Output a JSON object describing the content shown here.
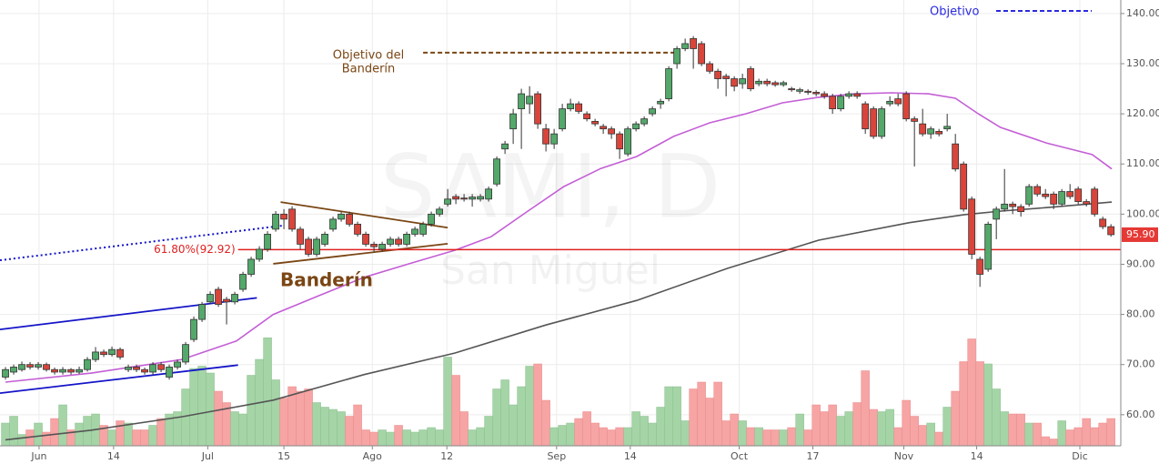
{
  "chart_data": {
    "type": "candlestick",
    "watermark": "SAMI, D",
    "watermark_sub": "San Miguel",
    "xlim": [
      -0.67,
      136.2
    ],
    "xticks": [
      {
        "value": 4.1,
        "label": "Jun"
      },
      {
        "value": 13.2,
        "label": "14"
      },
      {
        "value": 24.7,
        "label": "Jul"
      },
      {
        "value": 34,
        "label": "15"
      },
      {
        "value": 44.8,
        "label": "Ago"
      },
      {
        "value": 53.9,
        "label": "12"
      },
      {
        "value": 67.3,
        "label": "Sep"
      },
      {
        "value": 76.3,
        "label": "14"
      },
      {
        "value": 89.6,
        "label": "Oct"
      },
      {
        "value": 98.6,
        "label": "17"
      },
      {
        "value": 109.7,
        "label": "Nov"
      },
      {
        "value": 118.6,
        "label": "14"
      },
      {
        "value": 131.2,
        "label": "Dic"
      }
    ],
    "ylim": [
      53.8,
      142.7
    ],
    "yticks": [
      {
        "value": 60,
        "label": "60.00"
      },
      {
        "value": 70,
        "label": "70.00"
      },
      {
        "value": 80,
        "label": "80.00"
      },
      {
        "value": 90,
        "label": "90.00"
      },
      {
        "value": 100,
        "label": "100.00"
      },
      {
        "value": 110,
        "label": "110.00"
      },
      {
        "value": 120,
        "label": "120.00"
      },
      {
        "value": 130,
        "label": "130.00"
      },
      {
        "value": 140,
        "label": "140.00"
      }
    ],
    "grid": true,
    "up_color": "#53a86a",
    "down_color": "#d9453b",
    "candles": {
      "open": [
        67.5,
        68.5,
        69,
        70,
        69.5,
        70,
        69,
        68.5,
        69,
        68.5,
        69,
        71,
        72.5,
        72,
        73,
        69,
        69.5,
        69,
        68.5,
        70,
        67.5,
        69.5,
        70.5,
        75,
        79,
        82.5,
        85,
        83,
        82.5,
        85,
        88,
        91,
        93,
        97,
        100,
        101,
        97,
        95,
        92,
        94,
        97,
        99,
        100,
        98,
        96,
        94,
        93,
        94,
        95,
        94,
        96,
        96,
        98,
        100,
        102,
        103.5,
        103.2,
        103,
        103,
        103,
        106,
        113,
        117,
        121,
        122,
        124,
        117,
        114,
        117,
        121,
        122,
        120,
        118.5,
        117.5,
        117,
        116,
        112,
        117,
        118,
        120,
        122,
        123,
        130,
        133,
        135,
        134,
        130,
        128.5,
        127.5,
        127,
        126,
        129,
        126,
        126.5,
        126.2,
        125.8,
        125,
        124.5,
        124.5,
        124.3,
        124,
        123.5,
        121,
        123.5,
        124,
        122,
        121,
        115.5,
        122,
        123,
        124,
        119,
        118,
        116,
        116.5,
        117,
        114,
        110,
        103,
        91,
        89,
        99,
        101,
        102,
        101.5,
        102,
        105.5,
        104,
        104,
        102,
        104.5,
        105,
        102.5,
        105,
        99,
        97.5
      ],
      "high": [
        69.5,
        70,
        70.6,
        70.5,
        70.5,
        70.4,
        69.4,
        69.5,
        69.3,
        69.6,
        71.5,
        73.5,
        73,
        73.6,
        73.4,
        70,
        70,
        69.4,
        70.5,
        70.5,
        70,
        71,
        74.5,
        79.6,
        82.5,
        84.6,
        85.5,
        83.5,
        84.5,
        88.5,
        91.5,
        93.6,
        96.6,
        100.6,
        101,
        101.6,
        97.5,
        95.5,
        95.5,
        96.5,
        99.5,
        100.5,
        100.5,
        98.5,
        96.5,
        94.5,
        94.5,
        95.5,
        95.5,
        96.5,
        97.5,
        98.5,
        100.5,
        101.5,
        105,
        104,
        104,
        104,
        104,
        105.5,
        111.5,
        114.6,
        121,
        125,
        125.5,
        124.5,
        118,
        117,
        122,
        123,
        122.5,
        120.5,
        119,
        118,
        117.5,
        116.5,
        117.5,
        118.5,
        119.5,
        121.5,
        123,
        129.5,
        133.5,
        135,
        135.5,
        134.5,
        130.5,
        129,
        128,
        127.5,
        128,
        129.5,
        127,
        127,
        126.6,
        126.6,
        125.4,
        125.2,
        124.9,
        124.7,
        124.5,
        124,
        124,
        124.5,
        124.5,
        122.5,
        121.5,
        121.5,
        123.5,
        124,
        124.5,
        119.5,
        121,
        117.5,
        117,
        120,
        116,
        110.5,
        103.5,
        91.5,
        98.5,
        101.5,
        109,
        102.5,
        102,
        106,
        106,
        105,
        104.5,
        105,
        106,
        105.5,
        103,
        105.5,
        99.5,
        98
      ],
      "low": [
        67,
        68,
        68.6,
        69,
        69,
        68.6,
        68,
        68,
        68,
        68.1,
        68.6,
        70.5,
        71.5,
        71.6,
        71,
        68.5,
        68.5,
        68,
        68,
        68.5,
        67,
        69,
        70,
        74.5,
        78.5,
        82,
        81.5,
        78,
        82,
        84.5,
        87.5,
        90.5,
        92.5,
        96.5,
        97,
        96.5,
        93,
        91.5,
        91.5,
        93.5,
        96.5,
        98.5,
        97.5,
        95.5,
        93.5,
        92.5,
        92.5,
        93.5,
        93.5,
        93.5,
        95.5,
        95.5,
        97.5,
        99.5,
        101.5,
        102,
        102.5,
        101.5,
        102.5,
        102.5,
        105.5,
        112,
        114,
        113,
        120,
        117,
        112.5,
        113,
        116.5,
        120.5,
        120,
        118.5,
        117.5,
        116,
        115,
        111,
        111.5,
        116.5,
        117.5,
        119.5,
        121,
        122.5,
        129,
        132.5,
        129,
        129.5,
        128,
        125,
        123.5,
        124.5,
        125,
        124.5,
        125.5,
        125.5,
        125.4,
        125.4,
        124.4,
        124,
        123.8,
        123.5,
        123,
        120,
        120.5,
        123,
        123,
        116,
        115,
        115,
        121.5,
        121.5,
        118.5,
        109.5,
        115.5,
        115,
        115.5,
        116.5,
        108.5,
        100.5,
        91,
        85.5,
        88.5,
        95,
        100.5,
        100,
        99.5,
        101.5,
        103.5,
        103,
        101,
        101.5,
        103,
        102,
        101.5,
        99.5,
        97,
        95.5
      ],
      "close": [
        69,
        69.5,
        70,
        69.5,
        70,
        69,
        68.5,
        69,
        68.5,
        69,
        71,
        72.5,
        72,
        73,
        71.5,
        69.5,
        69,
        68.5,
        70,
        69,
        69.5,
        70.5,
        74,
        79,
        82,
        84,
        82,
        82.5,
        84,
        88,
        91,
        93,
        96,
        100,
        99,
        97,
        94,
        92,
        95,
        96,
        99,
        100,
        98,
        96,
        94,
        93.5,
        94,
        95,
        94,
        96,
        97,
        98,
        100,
        101,
        103,
        103,
        103,
        103.4,
        103.5,
        105,
        111,
        114,
        120,
        124,
        123.5,
        118,
        114,
        116,
        121,
        122,
        120.5,
        119,
        118,
        117,
        116,
        113,
        117,
        118,
        119,
        121,
        122.5,
        129,
        133,
        134,
        133,
        130,
        128.5,
        127,
        127,
        125.5,
        127,
        125,
        126.5,
        126,
        125.8,
        126.2,
        124.8,
        124.8,
        124.3,
        124,
        123.5,
        121,
        123.5,
        124,
        123.5,
        117,
        115.5,
        121,
        122.5,
        122,
        119,
        118.5,
        116,
        117,
        116,
        117.5,
        109,
        101,
        92,
        88,
        98,
        101,
        102,
        101.5,
        100.5,
        105.5,
        104,
        103.5,
        102,
        104.5,
        103.5,
        102.5,
        102,
        100,
        97.5,
        95.9
      ]
    },
    "volume": [
      20,
      26,
      10,
      14,
      20,
      12,
      24,
      36,
      14,
      20,
      26,
      28,
      18,
      14,
      22,
      20,
      14,
      14,
      18,
      24,
      28,
      30,
      50,
      68,
      70,
      64,
      48,
      38,
      30,
      28,
      62,
      76,
      95,
      58,
      42,
      52,
      48,
      50,
      38,
      34,
      32,
      30,
      26,
      36,
      14,
      12,
      14,
      12,
      18,
      14,
      12,
      14,
      16,
      14,
      78,
      62,
      30,
      14,
      16,
      26,
      50,
      58,
      36,
      52,
      70,
      72,
      40,
      16,
      18,
      20,
      24,
      30,
      20,
      16,
      14,
      16,
      16,
      30,
      26,
      20,
      34,
      52,
      52,
      22,
      50,
      56,
      42,
      56,
      22,
      28,
      22,
      16,
      16,
      14,
      14,
      14,
      16,
      28,
      14,
      36,
      30,
      36,
      26,
      30,
      38,
      66,
      32,
      30,
      32,
      16,
      40,
      26,
      18,
      20,
      12,
      34,
      48,
      74,
      94,
      74,
      72,
      50,
      30,
      28,
      28,
      20,
      20,
      8,
      6,
      22,
      14,
      16,
      24,
      16,
      20,
      24
    ],
    "volume_lim": [
      0,
      100
    ],
    "volume_up_color": "#a5d4a7",
    "volume_down_color": "#f6a4a4",
    "moving_averages": [
      {
        "color": "#c45ed6",
        "x": [
          0,
          10.5,
          21.5,
          28.2,
          32.7,
          38.2,
          43.8,
          49.3,
          54.9,
          59.3,
          63.8,
          68.2,
          72.7,
          77.1,
          81.6,
          86,
          90.4,
          94.9,
          99.3,
          103.8,
          108.2,
          112.7,
          116,
          118.8,
          121.5,
          127.1,
          132.7,
          135.1
        ],
        "values": [
          66.5,
          68.3,
          71,
          74.7,
          80,
          83.7,
          87.4,
          90.1,
          92.8,
          95.5,
          100.6,
          105.5,
          109.1,
          111.5,
          115.5,
          118.2,
          120,
          122.2,
          123.3,
          124,
          124.2,
          124,
          123.1,
          120,
          117.3,
          114.2,
          111.9,
          109
        ]
      },
      {
        "color": "#555555",
        "x": [
          0,
          10.4,
          21.6,
          32.7,
          43.8,
          54.9,
          66,
          77.1,
          88.2,
          99.3,
          110.4,
          117.1,
          121.6,
          127.1,
          135.1
        ],
        "values": [
          55,
          56.9,
          59.6,
          62.9,
          68,
          72.3,
          77.9,
          82.8,
          89.2,
          94.8,
          98.3,
          99.9,
          100.6,
          101.3,
          102.4
        ]
      }
    ],
    "trendlines": [
      {
        "color": "#1414c8",
        "style": "solid",
        "x": [
          -0.67,
          30.7
        ],
        "values": [
          77,
          83.3
        ]
      },
      {
        "color": "#1414c8",
        "style": "solid",
        "x": [
          -0.67,
          28.4
        ],
        "values": [
          64.3,
          69.9
        ]
      },
      {
        "color": "#1414c8",
        "style": "dotted",
        "x": [
          -0.67,
          33.8
        ],
        "values": [
          90.8,
          97.7
        ]
      },
      {
        "color": "#7a4614",
        "style": "solid",
        "x": [
          33.6,
          54
        ],
        "values": [
          102.4,
          97.3
        ]
      },
      {
        "color": "#7a4614",
        "style": "solid",
        "x": [
          32.7,
          54
        ],
        "values": [
          90.1,
          94.1
        ]
      }
    ],
    "fib_level": {
      "value": 92.92,
      "label": "61.80%(92.92)",
      "color": "#e02020",
      "x": [
        28.4,
        136.2
      ]
    },
    "flag_target": {
      "value": 132.2,
      "label": [
        "Objetivo del",
        "Banderín"
      ],
      "color": "#7a4614",
      "x": [
        51,
        81.8
      ]
    },
    "flag_label": "Banderín",
    "legend": {
      "label": "Objetivo",
      "color": "#2a2ae0"
    },
    "last_price": {
      "value": 95.9,
      "label": "95.90",
      "color": "#e53935"
    }
  }
}
